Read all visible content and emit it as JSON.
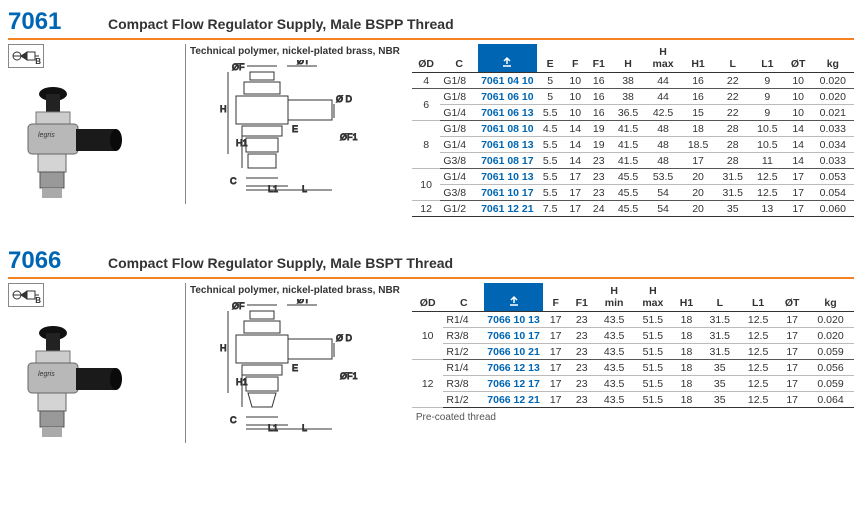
{
  "sections": [
    {
      "part_number": "7061",
      "title": "Compact Flow Regulator Supply, Male BSPP Thread",
      "material": "Technical polymer, nickel-plated brass, NBR",
      "note": "",
      "columns": [
        "ØD",
        "C",
        "part",
        "E",
        "F",
        "F1",
        "H",
        "H max",
        "H1",
        "L",
        "L1",
        "ØT",
        "kg"
      ],
      "groups": [
        {
          "od": "4",
          "rows": [
            [
              "G1/8",
              "7061 04 10",
              "5",
              "10",
              "16",
              "38",
              "44",
              "16",
              "22",
              "9",
              "10",
              "0.020"
            ]
          ]
        },
        {
          "od": "6",
          "rows": [
            [
              "G1/8",
              "7061 06 10",
              "5",
              "10",
              "16",
              "38",
              "44",
              "16",
              "22",
              "9",
              "10",
              "0.020"
            ],
            [
              "G1/4",
              "7061 06 13",
              "5.5",
              "10",
              "16",
              "36.5",
              "42.5",
              "15",
              "22",
              "9",
              "10",
              "0.021"
            ]
          ]
        },
        {
          "od": "8",
          "rows": [
            [
              "G1/8",
              "7061 08 10",
              "4.5",
              "14",
              "19",
              "41.5",
              "48",
              "18",
              "28",
              "10.5",
              "14",
              "0.033"
            ],
            [
              "G1/4",
              "7061 08 13",
              "5.5",
              "14",
              "19",
              "41.5",
              "48",
              "18.5",
              "28",
              "10.5",
              "14",
              "0.034"
            ],
            [
              "G3/8",
              "7061 08 17",
              "5.5",
              "14",
              "23",
              "41.5",
              "48",
              "17",
              "28",
              "11",
              "14",
              "0.033"
            ]
          ]
        },
        {
          "od": "10",
          "rows": [
            [
              "G1/4",
              "7061 10 13",
              "5.5",
              "17",
              "23",
              "45.5",
              "53.5",
              "20",
              "31.5",
              "12.5",
              "17",
              "0.053"
            ],
            [
              "G3/8",
              "7061 10 17",
              "5.5",
              "17",
              "23",
              "45.5",
              "54",
              "20",
              "31.5",
              "12.5",
              "17",
              "0.054"
            ]
          ]
        },
        {
          "od": "12",
          "rows": [
            [
              "G1/2",
              "7061 12 21",
              "7.5",
              "17",
              "24",
              "45.5",
              "54",
              "20",
              "35",
              "13",
              "17",
              "0.060"
            ]
          ]
        }
      ]
    },
    {
      "part_number": "7066",
      "title": "Compact Flow Regulator Supply, Male BSPT Thread",
      "material": "Technical polymer, nickel-plated brass, NBR",
      "note": "Pre-coated thread",
      "columns": [
        "ØD",
        "C",
        "part",
        "F",
        "F1",
        "H min",
        "H max",
        "H1",
        "L",
        "L1",
        "ØT",
        "kg"
      ],
      "groups": [
        {
          "od": "10",
          "rows": [
            [
              "R1/4",
              "7066 10 13",
              "17",
              "23",
              "43.5",
              "51.5",
              "18",
              "31.5",
              "12.5",
              "17",
              "0.020"
            ],
            [
              "R3/8",
              "7066 10 17",
              "17",
              "23",
              "43.5",
              "51.5",
              "18",
              "31.5",
              "12.5",
              "17",
              "0.020"
            ],
            [
              "R1/2",
              "7066 10 21",
              "17",
              "23",
              "43.5",
              "51.5",
              "18",
              "31.5",
              "12.5",
              "17",
              "0.059"
            ]
          ]
        },
        {
          "od": "12",
          "rows": [
            [
              "R1/4",
              "7066 12 13",
              "17",
              "23",
              "43.5",
              "51.5",
              "18",
              "35",
              "12.5",
              "17",
              "0.056"
            ],
            [
              "R3/8",
              "7066 12 17",
              "17",
              "23",
              "43.5",
              "51.5",
              "18",
              "35",
              "12.5",
              "17",
              "0.059"
            ],
            [
              "R1/2",
              "7066 12 21",
              "17",
              "23",
              "43.5",
              "51.5",
              "18",
              "35",
              "12.5",
              "17",
              "0.064"
            ]
          ]
        }
      ]
    }
  ],
  "colors": {
    "accent_orange": "#f58220",
    "accent_blue": "#0066b3",
    "text": "#333333",
    "border": "#888888"
  }
}
